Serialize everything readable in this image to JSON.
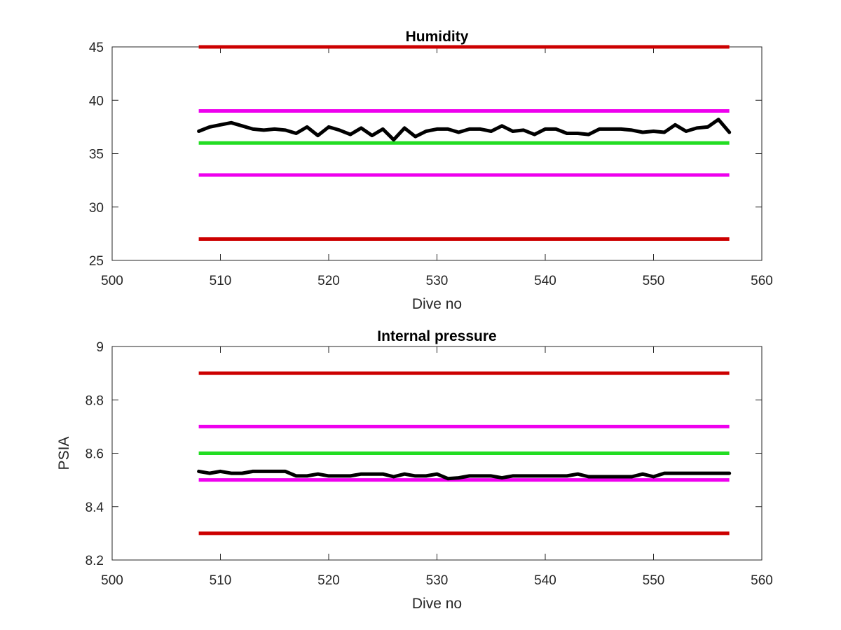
{
  "chart_data": [
    {
      "type": "line",
      "title": "Humidity",
      "xlabel": "Dive no",
      "ylabel": "",
      "xlim": [
        500,
        560
      ],
      "ylim": [
        25,
        45
      ],
      "xticks": [
        500,
        510,
        520,
        530,
        540,
        550,
        560
      ],
      "yticks": [
        25,
        30,
        35,
        40,
        45
      ],
      "grid": false,
      "thresholds": [
        {
          "value": 45,
          "x": [
            508,
            557
          ],
          "color": "#cc0000"
        },
        {
          "value": 39,
          "x": [
            508,
            557
          ],
          "color": "#ee00ee"
        },
        {
          "value": 36,
          "x": [
            508,
            557
          ],
          "color": "#22dd22"
        },
        {
          "value": 33,
          "x": [
            508,
            557
          ],
          "color": "#ee00ee"
        },
        {
          "value": 27,
          "x": [
            508,
            557
          ],
          "color": "#cc0000"
        }
      ],
      "series": [
        {
          "color": "#000000",
          "x": [
            508,
            509,
            510,
            511,
            512,
            513,
            514,
            515,
            516,
            517,
            518,
            519,
            520,
            521,
            522,
            523,
            524,
            525,
            526,
            527,
            528,
            529,
            530,
            531,
            532,
            533,
            534,
            535,
            536,
            537,
            538,
            539,
            540,
            541,
            542,
            543,
            544,
            545,
            546,
            547,
            548,
            549,
            550,
            551,
            552,
            553,
            554,
            555,
            556,
            557
          ],
          "values": [
            37.1,
            37.5,
            37.7,
            37.9,
            37.6,
            37.3,
            37.2,
            37.3,
            37.2,
            36.9,
            37.5,
            36.7,
            37.5,
            37.2,
            36.8,
            37.4,
            36.7,
            37.3,
            36.3,
            37.4,
            36.6,
            37.1,
            37.3,
            37.3,
            37.0,
            37.3,
            37.3,
            37.1,
            37.6,
            37.1,
            37.2,
            36.8,
            37.3,
            37.3,
            36.9,
            36.9,
            36.8,
            37.3,
            37.3,
            37.3,
            37.2,
            37.0,
            37.1,
            37.0,
            37.7,
            37.1,
            37.4,
            37.5,
            38.2,
            37.0
          ]
        }
      ]
    },
    {
      "type": "line",
      "title": "Internal pressure",
      "xlabel": "Dive no",
      "ylabel": "PSIA",
      "xlim": [
        500,
        560
      ],
      "ylim": [
        8.2,
        9.0
      ],
      "xticks": [
        500,
        510,
        520,
        530,
        540,
        550,
        560
      ],
      "yticks": [
        8.2,
        8.4,
        8.6,
        8.8,
        9.0
      ],
      "ytick_labels": [
        "8.2",
        "8.4",
        "8.6",
        "8.8",
        "9"
      ],
      "grid": false,
      "thresholds": [
        {
          "value": 8.9,
          "x": [
            508,
            557
          ],
          "color": "#cc0000"
        },
        {
          "value": 8.7,
          "x": [
            508,
            557
          ],
          "color": "#ee00ee"
        },
        {
          "value": 8.6,
          "x": [
            508,
            557
          ],
          "color": "#22dd22"
        },
        {
          "value": 8.5,
          "x": [
            508,
            557
          ],
          "color": "#ee00ee"
        },
        {
          "value": 8.3,
          "x": [
            508,
            557
          ],
          "color": "#cc0000"
        }
      ],
      "series": [
        {
          "color": "#000000",
          "x": [
            508,
            509,
            510,
            511,
            512,
            513,
            514,
            515,
            516,
            517,
            518,
            519,
            520,
            521,
            522,
            523,
            524,
            525,
            526,
            527,
            528,
            529,
            530,
            531,
            532,
            533,
            534,
            535,
            536,
            537,
            538,
            539,
            540,
            541,
            542,
            543,
            544,
            545,
            546,
            547,
            548,
            549,
            550,
            551,
            552,
            553,
            554,
            555,
            556,
            557
          ],
          "values": [
            8.532,
            8.525,
            8.532,
            8.525,
            8.525,
            8.532,
            8.532,
            8.532,
            8.532,
            8.515,
            8.515,
            8.522,
            8.515,
            8.515,
            8.515,
            8.522,
            8.522,
            8.522,
            8.512,
            8.522,
            8.515,
            8.515,
            8.522,
            8.505,
            8.508,
            8.515,
            8.515,
            8.515,
            8.508,
            8.515,
            8.515,
            8.515,
            8.515,
            8.515,
            8.515,
            8.522,
            8.512,
            8.512,
            8.512,
            8.512,
            8.512,
            8.522,
            8.512,
            8.525,
            8.525,
            8.525,
            8.525,
            8.525,
            8.525,
            8.525
          ]
        }
      ]
    }
  ]
}
